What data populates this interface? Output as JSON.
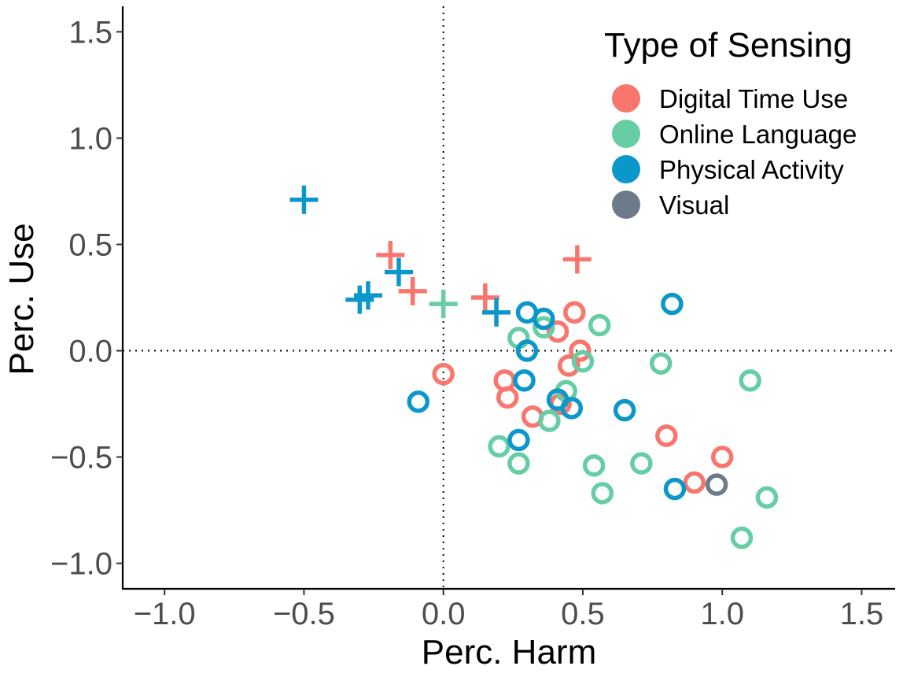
{
  "chart_data": {
    "type": "scatter",
    "xlabel": "Perc. Harm",
    "ylabel": "Perc. Use",
    "xlim": [
      -1.15,
      1.62
    ],
    "ylim": [
      -1.12,
      1.62
    ],
    "xticks": [
      -1.0,
      -0.5,
      0.0,
      0.5,
      1.0,
      1.5
    ],
    "yticks": [
      -1.0,
      -0.5,
      0.0,
      0.5,
      1.0,
      1.5
    ],
    "xtick_labels": [
      "−1.0",
      "−0.5",
      "0.0",
      "0.5",
      "1.0",
      "1.5"
    ],
    "ytick_labels": [
      "−1.0",
      "−0.5",
      "0.0",
      "0.5",
      "1.0",
      "1.5"
    ],
    "reference_lines": {
      "x": 0.0,
      "y": 0.0,
      "style": "dotted"
    },
    "legend": {
      "title": "Type of Sensing",
      "position": "top-right",
      "entries": [
        {
          "name": "Digital Time Use",
          "color": "#F8766D"
        },
        {
          "name": "Online Language",
          "color": "#66CDA4"
        },
        {
          "name": "Physical Activity",
          "color": "#0C97CB"
        },
        {
          "name": "Visual",
          "color": "#6C7A89"
        }
      ]
    },
    "shapes": [
      "circle",
      "plus"
    ],
    "series": [
      {
        "name": "Digital Time Use",
        "color": "#F8766D",
        "points": [
          {
            "x": -0.19,
            "y": 0.45,
            "shape": "plus"
          },
          {
            "x": -0.11,
            "y": 0.28,
            "shape": "plus"
          },
          {
            "x": 0.15,
            "y": 0.25,
            "shape": "plus"
          },
          {
            "x": 0.48,
            "y": 0.43,
            "shape": "plus"
          },
          {
            "x": 0.0,
            "y": -0.11,
            "shape": "circle"
          },
          {
            "x": 0.22,
            "y": -0.14,
            "shape": "circle"
          },
          {
            "x": 0.23,
            "y": -0.22,
            "shape": "circle"
          },
          {
            "x": 0.32,
            "y": -0.31,
            "shape": "circle"
          },
          {
            "x": 0.41,
            "y": 0.09,
            "shape": "circle"
          },
          {
            "x": 0.47,
            "y": 0.18,
            "shape": "circle"
          },
          {
            "x": 0.49,
            "y": 0.0,
            "shape": "circle"
          },
          {
            "x": 0.45,
            "y": -0.07,
            "shape": "circle"
          },
          {
            "x": 0.42,
            "y": -0.25,
            "shape": "circle"
          },
          {
            "x": 0.8,
            "y": -0.4,
            "shape": "circle"
          },
          {
            "x": 0.9,
            "y": -0.62,
            "shape": "circle"
          },
          {
            "x": 1.0,
            "y": -0.5,
            "shape": "circle"
          }
        ]
      },
      {
        "name": "Online Language",
        "color": "#66CDA4",
        "points": [
          {
            "x": 0.0,
            "y": 0.22,
            "shape": "plus"
          },
          {
            "x": 0.27,
            "y": 0.06,
            "shape": "circle"
          },
          {
            "x": 0.36,
            "y": 0.11,
            "shape": "circle"
          },
          {
            "x": 0.56,
            "y": 0.12,
            "shape": "circle"
          },
          {
            "x": 0.5,
            "y": -0.05,
            "shape": "circle"
          },
          {
            "x": 0.44,
            "y": -0.19,
            "shape": "circle"
          },
          {
            "x": 0.38,
            "y": -0.33,
            "shape": "circle"
          },
          {
            "x": 0.2,
            "y": -0.45,
            "shape": "circle"
          },
          {
            "x": 0.27,
            "y": -0.53,
            "shape": "circle"
          },
          {
            "x": 0.54,
            "y": -0.54,
            "shape": "circle"
          },
          {
            "x": 0.57,
            "y": -0.67,
            "shape": "circle"
          },
          {
            "x": 0.71,
            "y": -0.53,
            "shape": "circle"
          },
          {
            "x": 0.78,
            "y": -0.06,
            "shape": "circle"
          },
          {
            "x": 1.1,
            "y": -0.14,
            "shape": "circle"
          },
          {
            "x": 1.16,
            "y": -0.69,
            "shape": "circle"
          },
          {
            "x": 1.07,
            "y": -0.88,
            "shape": "circle"
          }
        ]
      },
      {
        "name": "Physical Activity",
        "color": "#0C97CB",
        "points": [
          {
            "x": -0.5,
            "y": 0.71,
            "shape": "plus"
          },
          {
            "x": -0.16,
            "y": 0.37,
            "shape": "plus"
          },
          {
            "x": -0.3,
            "y": 0.24,
            "shape": "plus"
          },
          {
            "x": -0.27,
            "y": 0.26,
            "shape": "plus"
          },
          {
            "x": 0.19,
            "y": 0.18,
            "shape": "plus"
          },
          {
            "x": -0.09,
            "y": -0.24,
            "shape": "circle"
          },
          {
            "x": 0.3,
            "y": 0.18,
            "shape": "circle"
          },
          {
            "x": 0.36,
            "y": 0.15,
            "shape": "circle"
          },
          {
            "x": 0.3,
            "y": 0.0,
            "shape": "circle"
          },
          {
            "x": 0.29,
            "y": -0.14,
            "shape": "circle"
          },
          {
            "x": 0.41,
            "y": -0.23,
            "shape": "circle"
          },
          {
            "x": 0.46,
            "y": -0.27,
            "shape": "circle"
          },
          {
            "x": 0.27,
            "y": -0.42,
            "shape": "circle"
          },
          {
            "x": 0.65,
            "y": -0.28,
            "shape": "circle"
          },
          {
            "x": 0.82,
            "y": 0.22,
            "shape": "circle"
          },
          {
            "x": 0.83,
            "y": -0.65,
            "shape": "circle"
          }
        ]
      },
      {
        "name": "Visual",
        "color": "#6C7A89",
        "points": [
          {
            "x": 0.98,
            "y": -0.63,
            "shape": "circle"
          }
        ]
      }
    ]
  }
}
